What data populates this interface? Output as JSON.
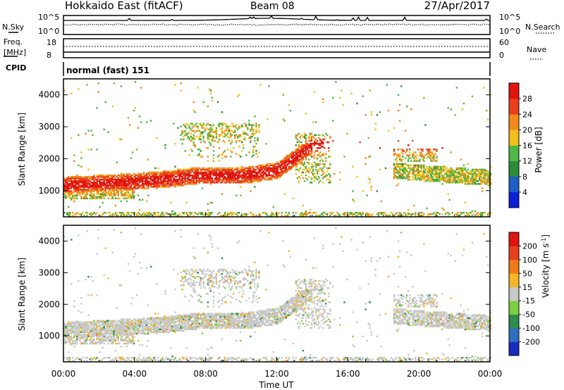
{
  "header": {
    "station": "Hokkaido East (fitACF)",
    "beam": "Beam 08",
    "date": "27/Apr/2017"
  },
  "noise_panel": {
    "left_label": "N.Sky",
    "right_label": "N.Search",
    "y_ticks_left": [
      "10^5",
      "10^0"
    ],
    "y_ticks_right": [
      "10^5",
      "10^0"
    ]
  },
  "freq_panel": {
    "left_label_1": "Freq.",
    "left_label_2": "[MHz]",
    "right_label": "Nave",
    "left_ticks": [
      18,
      8
    ],
    "right_ticks": [
      60,
      0
    ]
  },
  "cpid": {
    "label": "CPID",
    "value": "normal (fast) 151"
  },
  "chart_data": [
    {
      "type": "heatmap",
      "parameter": "power",
      "ylabel": "Slant Range [km]",
      "xlabel": "",
      "xlim": [
        0,
        24
      ],
      "ylim": [
        180,
        4500
      ],
      "y_ticks": [
        1000,
        2000,
        3000,
        4000
      ],
      "colorbar_label": "Power [dB]",
      "colorbar_ticks": [
        4,
        8,
        12,
        16,
        20,
        24,
        28
      ],
      "colorbar_range": [
        0,
        32
      ],
      "colorbar_colors": [
        "#0a1fd6",
        "#1f5fc4",
        "#2d8b3a",
        "#4fb846",
        "#f2c01a",
        "#f08a1c",
        "#e8401e",
        "#e0140f"
      ]
    },
    {
      "type": "heatmap",
      "parameter": "velocity",
      "ylabel": "Slant Range [km]",
      "xlabel": "Time UT",
      "xlim": [
        0,
        24
      ],
      "ylim": [
        180,
        4500
      ],
      "y_ticks": [
        1000,
        2000,
        3000,
        4000
      ],
      "x_ticks": [
        "00:00",
        "04:00",
        "08:00",
        "12:00",
        "16:00",
        "20:00",
        "00:00"
      ],
      "colorbar_label": "Velocity [m s^-1]",
      "colorbar_ticks": [
        200,
        100,
        50,
        15,
        -15,
        -50,
        -100,
        -200
      ],
      "colorbar_colors": [
        "#1a2bbf",
        "#2f6fbf",
        "#2e8a4e",
        "#7ccf3e",
        "#c8c8c8",
        "#f2b628",
        "#f07a18",
        "#e8401e",
        "#e0140f"
      ]
    }
  ]
}
